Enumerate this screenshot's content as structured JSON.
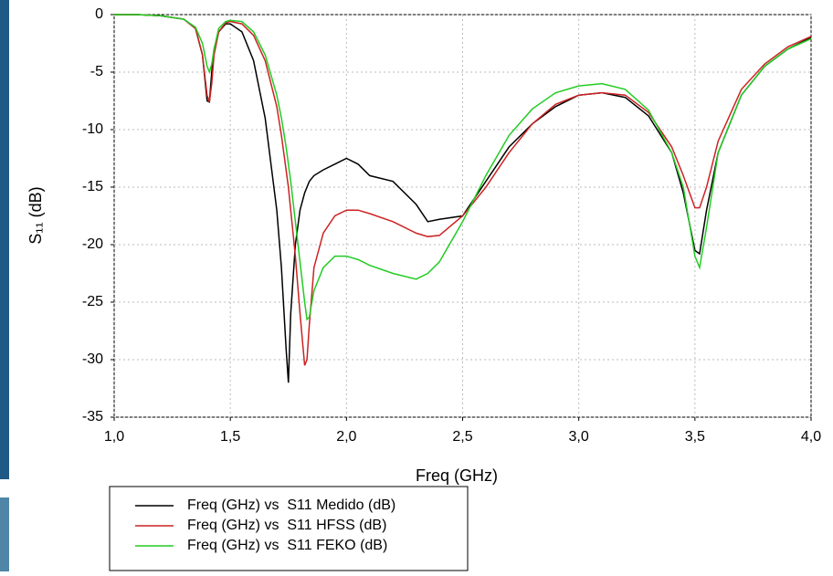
{
  "chart_data": {
    "type": "line",
    "xlabel": "Freq (GHz)",
    "ylabel": "S₁₁ (dB)",
    "x": [
      1.0,
      1.1,
      1.2,
      1.3,
      1.35,
      1.38,
      1.4,
      1.41,
      1.42,
      1.43,
      1.45,
      1.48,
      1.5,
      1.55,
      1.6,
      1.65,
      1.7,
      1.72,
      1.74,
      1.75,
      1.76,
      1.78,
      1.8,
      1.82,
      1.83,
      1.84,
      1.86,
      1.9,
      1.95,
      2.0,
      2.05,
      2.1,
      2.2,
      2.3,
      2.35,
      2.4,
      2.5,
      2.6,
      2.7,
      2.8,
      2.9,
      3.0,
      3.1,
      3.2,
      3.3,
      3.4,
      3.45,
      3.5,
      3.52,
      3.55,
      3.6,
      3.7,
      3.8,
      3.9,
      4.0
    ],
    "series": [
      {
        "name": "Freq (GHz) vs  S11 Medido (dB)",
        "color": "#000000",
        "values": [
          0,
          0,
          -0.1,
          -0.4,
          -1.2,
          -3.5,
          -7.5,
          -7.6,
          -5,
          -3,
          -1.5,
          -0.8,
          -0.8,
          -1.5,
          -4,
          -9,
          -17,
          -22,
          -29,
          -32,
          -26,
          -20,
          -17,
          -15.5,
          -15,
          -14.5,
          -14,
          -13.5,
          -13,
          -12.5,
          -13,
          -14,
          -14.5,
          -16.5,
          -18,
          -17.8,
          -17.5,
          -14.5,
          -11.5,
          -9.5,
          -8,
          -7,
          -6.8,
          -7.2,
          -8.8,
          -12,
          -15.5,
          -20.5,
          -20.8,
          -17,
          -12,
          -7,
          -4.5,
          -3,
          -2
        ]
      },
      {
        "name": "Freq (GHz) vs  S11 HFSS (dB)",
        "color": "#cc2222",
        "values": [
          0,
          0,
          -0.1,
          -0.4,
          -1.2,
          -3.5,
          -7,
          -7.6,
          -6,
          -3.5,
          -1.5,
          -0.7,
          -0.6,
          -0.8,
          -1.8,
          -4,
          -8,
          -10.5,
          -13.5,
          -15,
          -17,
          -21,
          -26,
          -30.5,
          -30,
          -27,
          -22,
          -19,
          -17.5,
          -17,
          -17,
          -17.3,
          -18,
          -19,
          -19.3,
          -19.2,
          -17.5,
          -15,
          -12,
          -9.5,
          -7.8,
          -7,
          -6.8,
          -7,
          -8.5,
          -11.5,
          -14,
          -16.8,
          -16.8,
          -15,
          -11,
          -6.5,
          -4.3,
          -2.8,
          -1.9
        ]
      },
      {
        "name": "Freq (GHz) vs  S11 FEKO (dB)",
        "color": "#22cc22",
        "values": [
          0,
          0,
          -0.1,
          -0.4,
          -1.1,
          -2.5,
          -4.5,
          -5,
          -4.3,
          -3,
          -1.2,
          -0.6,
          -0.5,
          -0.6,
          -1.5,
          -3.5,
          -7,
          -9,
          -11.5,
          -13,
          -14.5,
          -18,
          -21.5,
          -25,
          -26.5,
          -26.3,
          -24,
          -22,
          -21,
          -21,
          -21.3,
          -21.8,
          -22.5,
          -23,
          -22.5,
          -21.5,
          -18,
          -14,
          -10.5,
          -8.2,
          -6.8,
          -6.2,
          -6,
          -6.5,
          -8.3,
          -12,
          -15,
          -21,
          -22,
          -18.5,
          -12,
          -7,
          -4.5,
          -3,
          -2.1
        ]
      }
    ],
    "xlim": [
      1,
      4
    ],
    "xticks": [
      {
        "value": 1,
        "label": "1,0"
      },
      {
        "value": 1.5,
        "label": "1,5"
      },
      {
        "value": 2,
        "label": "2,0"
      },
      {
        "value": 2.5,
        "label": "2,5"
      },
      {
        "value": 3,
        "label": "3,0"
      },
      {
        "value": 3.5,
        "label": "3,5"
      },
      {
        "value": 4,
        "label": "4,0"
      }
    ],
    "ylim": [
      -35,
      0
    ],
    "yticks": [
      0,
      -5,
      -10,
      -15,
      -20,
      -25,
      -30,
      -35
    ],
    "grid": true
  }
}
